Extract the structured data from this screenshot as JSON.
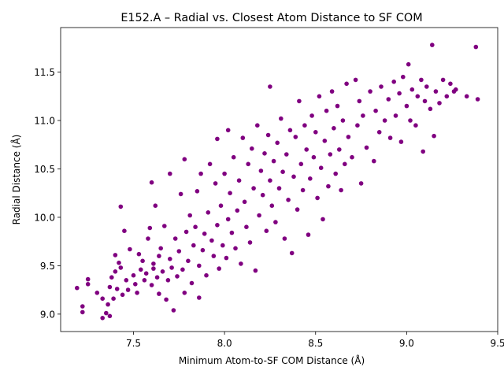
{
  "chart_data": {
    "type": "scatter",
    "title": "E152.A – Radial vs. Closest Atom Distance to SF COM",
    "xlabel": "Minimum Atom-to-SF COM Distance (Å)",
    "ylabel": "Radial Distance (Å)",
    "xlim": [
      7.1,
      9.5
    ],
    "ylim": [
      8.82,
      11.96
    ],
    "xticks": [
      7.5,
      8.0,
      8.5,
      9.0,
      9.5
    ],
    "xtick_labels": [
      "7.5",
      "8.0",
      "8.5",
      "9.0",
      "9.5"
    ],
    "yticks": [
      9.0,
      9.5,
      10.0,
      10.5,
      11.0,
      11.5
    ],
    "ytick_labels": [
      "9.0",
      "9.5",
      "10.0",
      "10.5",
      "11.0",
      "11.5"
    ],
    "grid": false,
    "legend": "none",
    "marker_color": "#800080",
    "series": [
      {
        "points": [
          [
            7.19,
            9.27
          ],
          [
            7.22,
            9.08
          ],
          [
            7.22,
            9.02
          ],
          [
            7.25,
            9.31
          ],
          [
            7.25,
            9.36
          ],
          [
            7.3,
            9.22
          ],
          [
            7.33,
            9.16
          ],
          [
            7.33,
            8.96
          ],
          [
            7.35,
            9.01
          ],
          [
            7.36,
            9.1
          ],
          [
            7.37,
            9.28
          ],
          [
            7.37,
            8.98
          ],
          [
            7.38,
            9.38
          ],
          [
            7.39,
            9.16
          ],
          [
            7.4,
            9.44
          ],
          [
            7.4,
            9.61
          ],
          [
            7.41,
            9.26
          ],
          [
            7.42,
            9.53
          ],
          [
            7.43,
            9.48
          ],
          [
            7.43,
            10.11
          ],
          [
            7.44,
            9.2
          ],
          [
            7.45,
            9.86
          ],
          [
            7.46,
            9.35
          ],
          [
            7.47,
            9.25
          ],
          [
            7.48,
            9.67
          ],
          [
            7.5,
            9.4
          ],
          [
            7.51,
            9.31
          ],
          [
            7.52,
            9.22
          ],
          [
            7.53,
            9.62
          ],
          [
            7.54,
            9.46
          ],
          [
            7.55,
            9.55
          ],
          [
            7.56,
            9.35
          ],
          [
            7.57,
            9.42
          ],
          [
            7.58,
            9.78
          ],
          [
            7.59,
            9.89
          ],
          [
            7.6,
            9.3
          ],
          [
            7.6,
            10.36
          ],
          [
            7.61,
            9.47
          ],
          [
            7.61,
            9.52
          ],
          [
            7.62,
            10.12
          ],
          [
            7.63,
            9.38
          ],
          [
            7.64,
            9.21
          ],
          [
            7.64,
            9.6
          ],
          [
            7.65,
            9.68
          ],
          [
            7.66,
            9.44
          ],
          [
            7.67,
            9.91
          ],
          [
            7.68,
            9.15
          ],
          [
            7.69,
            9.35
          ],
          [
            7.7,
            9.57
          ],
          [
            7.7,
            10.45
          ],
          [
            7.71,
            9.48
          ],
          [
            7.72,
            9.04
          ],
          [
            7.73,
            9.78
          ],
          [
            7.74,
            9.39
          ],
          [
            7.75,
            9.65
          ],
          [
            7.76,
            10.24
          ],
          [
            7.77,
            9.46
          ],
          [
            7.78,
            9.22
          ],
          [
            7.78,
            10.6
          ],
          [
            7.79,
            9.85
          ],
          [
            7.8,
            9.55
          ],
          [
            7.81,
            10.02
          ],
          [
            7.82,
            9.32
          ],
          [
            7.83,
            9.71
          ],
          [
            7.84,
            9.9
          ],
          [
            7.85,
            10.27
          ],
          [
            7.86,
            9.5
          ],
          [
            7.86,
            9.17
          ],
          [
            7.87,
            10.45
          ],
          [
            7.88,
            9.66
          ],
          [
            7.89,
            9.83
          ],
          [
            7.9,
            9.4
          ],
          [
            7.91,
            10.05
          ],
          [
            7.92,
            10.55
          ],
          [
            7.93,
            9.76
          ],
          [
            7.94,
            9.6
          ],
          [
            7.95,
            10.35
          ],
          [
            7.96,
            9.92
          ],
          [
            7.96,
            10.81
          ],
          [
            7.97,
            9.47
          ],
          [
            7.98,
            10.12
          ],
          [
            7.99,
            9.71
          ],
          [
            8.0,
            10.45
          ],
          [
            8.01,
            9.58
          ],
          [
            8.02,
            9.98
          ],
          [
            8.02,
            10.9
          ],
          [
            8.03,
            10.25
          ],
          [
            8.04,
            9.84
          ],
          [
            8.05,
            10.62
          ],
          [
            8.06,
            9.68
          ],
          [
            8.07,
            10.07
          ],
          [
            8.08,
            10.38
          ],
          [
            8.09,
            9.52
          ],
          [
            8.1,
            10.82
          ],
          [
            8.11,
            10.16
          ],
          [
            8.12,
            9.9
          ],
          [
            8.13,
            10.55
          ],
          [
            8.14,
            9.74
          ],
          [
            8.15,
            10.71
          ],
          [
            8.16,
            10.3
          ],
          [
            8.17,
            9.45
          ],
          [
            8.18,
            10.95
          ],
          [
            8.19,
            10.02
          ],
          [
            8.2,
            10.48
          ],
          [
            8.21,
            10.23
          ],
          [
            8.22,
            10.66
          ],
          [
            8.23,
            9.86
          ],
          [
            8.24,
            10.85
          ],
          [
            8.25,
            10.38
          ],
          [
            8.25,
            11.35
          ],
          [
            8.26,
            10.12
          ],
          [
            8.27,
            10.58
          ],
          [
            8.28,
            9.95
          ],
          [
            8.29,
            10.77
          ],
          [
            8.3,
            10.3
          ],
          [
            8.31,
            11.02
          ],
          [
            8.32,
            10.47
          ],
          [
            8.33,
            9.78
          ],
          [
            8.34,
            10.65
          ],
          [
            8.35,
            10.18
          ],
          [
            8.36,
            10.9
          ],
          [
            8.37,
            9.63
          ],
          [
            8.38,
            10.42
          ],
          [
            8.39,
            10.83
          ],
          [
            8.4,
            10.08
          ],
          [
            8.41,
            11.2
          ],
          [
            8.42,
            10.55
          ],
          [
            8.43,
            10.28
          ],
          [
            8.44,
            10.95
          ],
          [
            8.45,
            10.7
          ],
          [
            8.46,
            9.82
          ],
          [
            8.47,
            10.4
          ],
          [
            8.48,
            11.05
          ],
          [
            8.49,
            10.62
          ],
          [
            8.5,
            10.88
          ],
          [
            8.51,
            10.2
          ],
          [
            8.52,
            11.25
          ],
          [
            8.53,
            10.51
          ],
          [
            8.54,
            9.98
          ],
          [
            8.55,
            10.79
          ],
          [
            8.56,
            11.1
          ],
          [
            8.57,
            10.32
          ],
          [
            8.58,
            10.65
          ],
          [
            8.59,
            11.3
          ],
          [
            8.6,
            10.92
          ],
          [
            8.61,
            10.45
          ],
          [
            8.62,
            11.15
          ],
          [
            8.63,
            10.7
          ],
          [
            8.64,
            10.28
          ],
          [
            8.65,
            11.0
          ],
          [
            8.66,
            10.55
          ],
          [
            8.67,
            11.38
          ],
          [
            8.68,
            10.83
          ],
          [
            8.7,
            10.62
          ],
          [
            8.72,
            11.42
          ],
          [
            8.73,
            10.95
          ],
          [
            8.74,
            11.2
          ],
          [
            8.75,
            10.35
          ],
          [
            8.76,
            11.05
          ],
          [
            8.78,
            10.72
          ],
          [
            8.8,
            11.3
          ],
          [
            8.82,
            10.58
          ],
          [
            8.83,
            11.1
          ],
          [
            8.85,
            10.88
          ],
          [
            8.86,
            11.35
          ],
          [
            8.88,
            11.0
          ],
          [
            8.9,
            11.22
          ],
          [
            8.91,
            10.82
          ],
          [
            8.93,
            11.4
          ],
          [
            8.94,
            11.05
          ],
          [
            8.96,
            11.28
          ],
          [
            8.97,
            10.78
          ],
          [
            8.98,
            11.45
          ],
          [
            9.0,
            11.15
          ],
          [
            9.01,
            11.58
          ],
          [
            9.02,
            11.0
          ],
          [
            9.03,
            11.32
          ],
          [
            9.05,
            10.95
          ],
          [
            9.06,
            11.25
          ],
          [
            9.08,
            11.42
          ],
          [
            9.09,
            10.68
          ],
          [
            9.1,
            11.2
          ],
          [
            9.11,
            11.35
          ],
          [
            9.13,
            11.12
          ],
          [
            9.14,
            11.78
          ],
          [
            9.15,
            10.84
          ],
          [
            9.16,
            11.3
          ],
          [
            9.18,
            11.18
          ],
          [
            9.2,
            11.42
          ],
          [
            9.22,
            11.25
          ],
          [
            9.24,
            11.38
          ],
          [
            9.26,
            11.3
          ],
          [
            9.27,
            11.32
          ],
          [
            9.33,
            11.25
          ],
          [
            9.38,
            11.76
          ],
          [
            9.39,
            11.22
          ]
        ]
      }
    ]
  }
}
